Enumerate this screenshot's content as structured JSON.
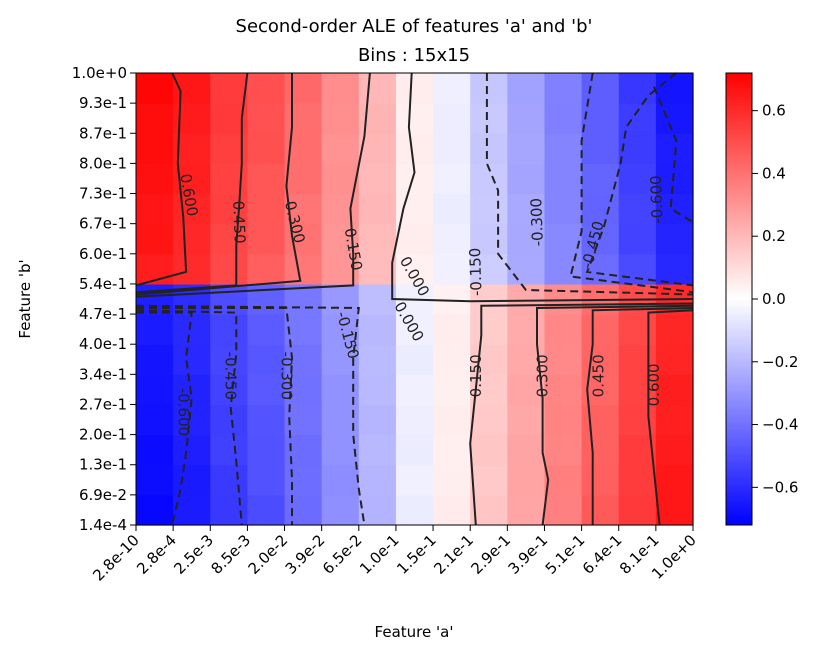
{
  "chart_data": {
    "type": "heatmap",
    "title": "Second-order ALE of features 'a' and 'b'",
    "subtitle": "Bins : 15x15",
    "xlabel": "Feature 'a'",
    "ylabel": "Feature 'b'",
    "x_ticks": [
      "2.8e-10",
      "2.8e-4",
      "2.5e-3",
      "8.5e-3",
      "2.0e-2",
      "3.9e-2",
      "6.5e-2",
      "1.0e-1",
      "1.5e-1",
      "2.1e-1",
      "2.9e-1",
      "3.9e-1",
      "5.1e-1",
      "6.4e-1",
      "8.1e-1",
      "1.0e+0"
    ],
    "y_ticks": [
      "1.4e-4",
      "6.9e-2",
      "1.3e-1",
      "2.0e-1",
      "2.7e-1",
      "3.4e-1",
      "4.0e-1",
      "4.7e-1",
      "5.4e-1",
      "6.0e-1",
      "6.7e-1",
      "7.3e-1",
      "8.0e-1",
      "8.7e-1",
      "9.3e-1",
      "1.0e+0"
    ],
    "colorbar": {
      "min": -0.72,
      "max": 0.72,
      "ticks": [
        "0.6",
        "0.4",
        "0.2",
        "0.0",
        "−0.2",
        "−0.4",
        "−0.6"
      ],
      "tick_values": [
        0.6,
        0.4,
        0.2,
        0.0,
        -0.2,
        -0.4,
        -0.6
      ],
      "colormap": "bwr"
    },
    "rows_top_half_values": [
      0.7,
      0.65,
      0.56,
      0.5,
      0.42,
      0.32,
      0.21,
      0.05,
      -0.05,
      -0.16,
      -0.26,
      -0.36,
      -0.46,
      -0.56,
      -0.66
    ],
    "rows_bottom_half_values": [
      -0.7,
      -0.65,
      -0.56,
      -0.5,
      -0.42,
      -0.32,
      -0.21,
      -0.05,
      0.05,
      0.16,
      0.26,
      0.36,
      0.46,
      0.56,
      0.66
    ],
    "contour_levels": [
      {
        "text": "0.600"
      },
      {
        "text": "0.450"
      },
      {
        "text": "0.300"
      },
      {
        "text": "0.150"
      },
      {
        "text": "0.000"
      },
      {
        "text": "-0.150"
      },
      {
        "text": "-0.300"
      },
      {
        "text": "-0.450"
      },
      {
        "text": "-0.600"
      },
      {
        "text": "0.000"
      },
      {
        "text": "-0.150"
      },
      {
        "text": "-0.300"
      },
      {
        "text": "-0.450"
      },
      {
        "text": "-0.600"
      },
      {
        "text": "0.150"
      },
      {
        "text": "0.300"
      },
      {
        "text": "0.450"
      },
      {
        "text": "0.600"
      }
    ]
  }
}
